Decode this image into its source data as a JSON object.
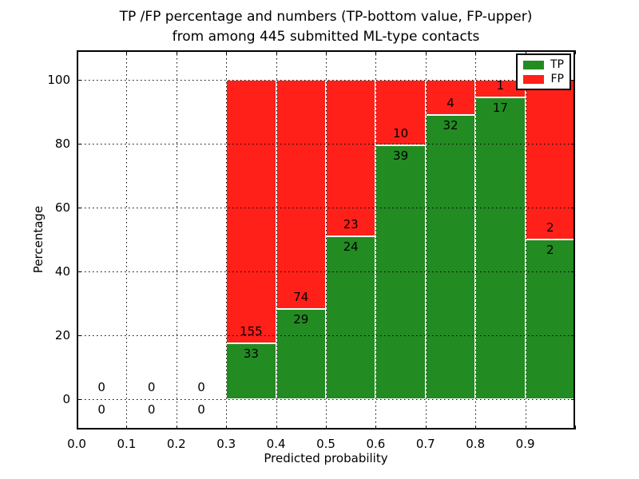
{
  "title": {
    "line1": "TP /FP percentage and numbers (TP-bottom value, FP-upper)",
    "line2": "from among 445 submitted ML-type contacts"
  },
  "axes": {
    "xlabel": "Predicted probability",
    "ylabel": "Percentage",
    "x_tick_labels": [
      "0.0",
      "0.1",
      "0.2",
      "0.3",
      "0.4",
      "0.5",
      "0.6",
      "0.7",
      "0.8",
      "0.9"
    ],
    "y_tick_labels": [
      "0",
      "20",
      "40",
      "60",
      "80",
      "100"
    ]
  },
  "legend": {
    "position": "upper-right",
    "entries": [
      {
        "label": "TP",
        "color": "#228b22"
      },
      {
        "label": "FP",
        "color": "#ff2019"
      }
    ]
  },
  "chart_data": {
    "type": "bar",
    "stacked": true,
    "normalized_to_percent": true,
    "title": "TP /FP percentage and numbers (TP-bottom value, FP-upper) from among 445 submitted ML-type contacts",
    "xlabel": "Predicted probability",
    "ylabel": "Percentage",
    "xlim": [
      0.0,
      1.0
    ],
    "ylim": [
      -10,
      110
    ],
    "grid": "dotted both axes",
    "legend_position": "upper right",
    "total_contacts": 445,
    "bin_width": 0.1,
    "bin_starts": [
      0.0,
      0.1,
      0.2,
      0.3,
      0.4,
      0.5,
      0.6,
      0.7,
      0.8,
      0.9
    ],
    "series": [
      {
        "name": "TP",
        "color": "#228b22",
        "counts": [
          0,
          0,
          0,
          33,
          29,
          24,
          39,
          32,
          17,
          2
        ]
      },
      {
        "name": "FP",
        "color": "#ff2019",
        "counts": [
          0,
          0,
          0,
          155,
          74,
          23,
          10,
          4,
          1,
          2
        ]
      }
    ],
    "tp_percent_of_bin": [
      null,
      null,
      null,
      17.6,
      28.2,
      51.1,
      79.6,
      88.9,
      94.4,
      50.0
    ]
  }
}
